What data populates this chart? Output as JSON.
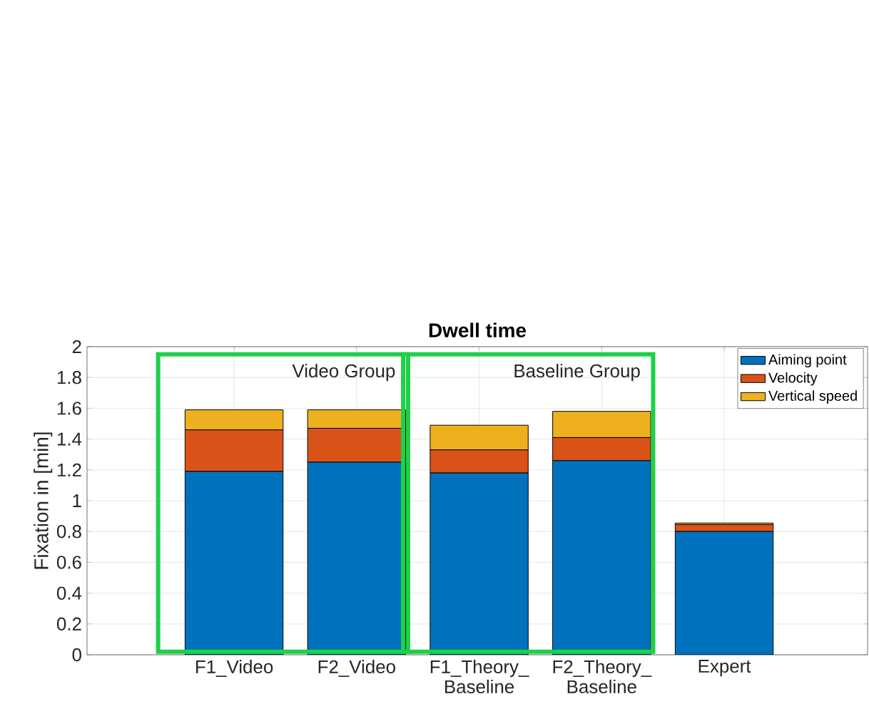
{
  "chart_data": {
    "type": "bar",
    "stacked": true,
    "title": "Dwell time",
    "ylabel": "Fixation in [min]",
    "categories": [
      "F1_Video",
      "F2_Video",
      "F1_Theory_ Baseline",
      "F2_Theory_ Baseline",
      "Expert"
    ],
    "series": [
      {
        "name": "Aiming point",
        "color": "#0072bd",
        "values": [
          1.19,
          1.25,
          1.18,
          1.26,
          0.8
        ]
      },
      {
        "name": "Velocity",
        "color": "#d95319",
        "values": [
          0.27,
          0.22,
          0.15,
          0.15,
          0.045
        ]
      },
      {
        "name": "Vertical speed",
        "color": "#edb120",
        "values": [
          0.13,
          0.12,
          0.16,
          0.17,
          0.01
        ]
      }
    ],
    "ylim": [
      0,
      2
    ],
    "yticks": [
      0,
      0.2,
      0.4,
      0.6,
      0.8,
      1,
      1.2,
      1.4,
      1.6,
      1.8,
      2
    ],
    "grid": true,
    "legend": "top right",
    "annotations": [
      "Video Group",
      "Baseline Group"
    ]
  }
}
